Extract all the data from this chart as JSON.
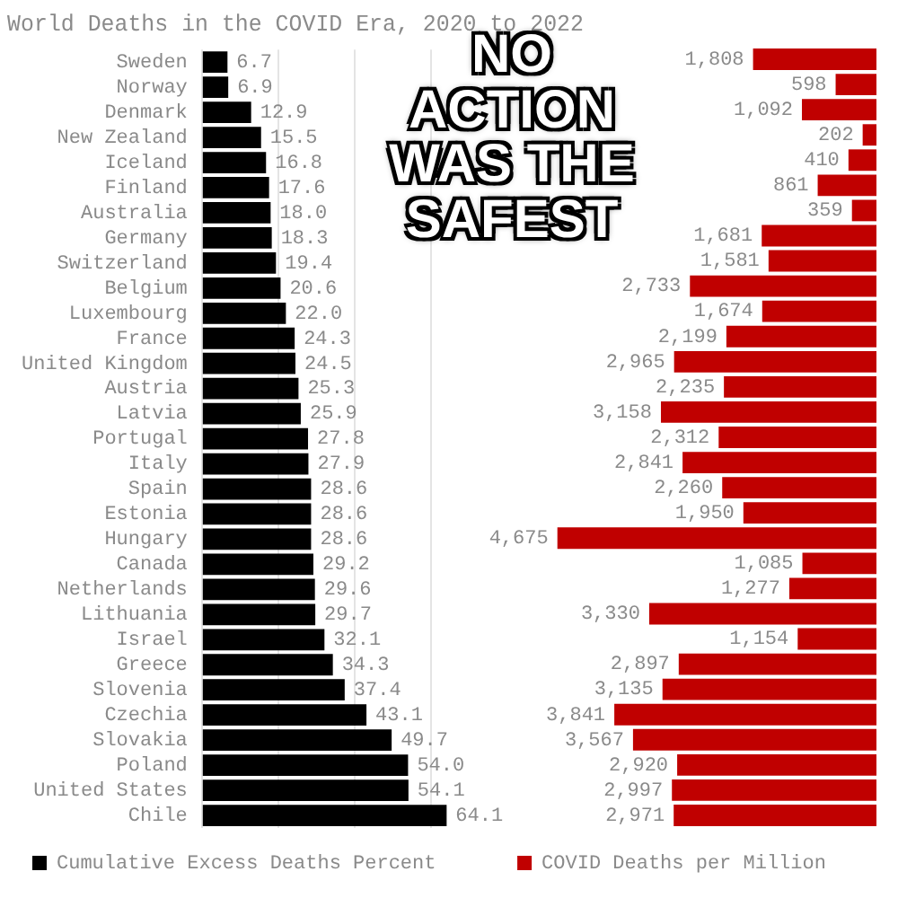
{
  "chart_data": [
    {
      "type": "bar",
      "orientation": "horizontal",
      "title": "World Deaths in the COVID Era, 2020 to 2022",
      "categories": [
        "Sweden",
        "Norway",
        "Denmark",
        "New Zealand",
        "Iceland",
        "Finland",
        "Australia",
        "Germany",
        "Switzerland",
        "Belgium",
        "Luxembourg",
        "France",
        "United Kingdom",
        "Austria",
        "Latvia",
        "Portugal",
        "Italy",
        "Spain",
        "Estonia",
        "Hungary",
        "Canada",
        "Netherlands",
        "Lithuania",
        "Israel",
        "Greece",
        "Slovenia",
        "Czechia",
        "Slovakia",
        "Poland",
        "United States",
        "Chile"
      ],
      "series": [
        {
          "name": "Cumulative Excess Deaths Percent",
          "color": "#000000",
          "values": [
            6.7,
            6.9,
            12.9,
            15.5,
            16.8,
            17.6,
            18.0,
            18.3,
            19.4,
            20.6,
            22.0,
            24.3,
            24.5,
            25.3,
            25.9,
            27.8,
            27.9,
            28.6,
            28.6,
            28.6,
            29.2,
            29.6,
            29.7,
            32.1,
            34.3,
            37.4,
            43.1,
            49.7,
            54.0,
            54.1,
            64.1
          ],
          "value_labels": [
            "6.7",
            "6.9",
            "12.9",
            "15.5",
            "16.8",
            "17.6",
            "18.0",
            "18.3",
            "19.4",
            "20.6",
            "22.0",
            "24.3",
            "24.5",
            "25.3",
            "25.9",
            "27.8",
            "27.9",
            "28.6",
            "28.6",
            "28.6",
            "29.2",
            "29.6",
            "29.7",
            "32.1",
            "34.3",
            "37.4",
            "43.1",
            "49.7",
            "54.0",
            "54.1",
            "64.1"
          ]
        }
      ],
      "xticks": [
        {
          "value": 0,
          "label": null
        },
        {
          "value": 20,
          "label": null
        },
        {
          "value": 40,
          "label": null
        },
        {
          "value": 60,
          "label": null
        }
      ],
      "grid": "x",
      "tick_labels": "y",
      "legend": "bottom left",
      "annotations": [
        "NO ACTION WAS THE SAFEST"
      ]
    },
    {
      "type": "bar",
      "orientation": "horizontal",
      "categories": [
        null,
        null,
        null,
        null,
        null,
        null,
        null,
        null,
        null,
        null,
        null,
        null,
        null,
        null,
        null,
        null,
        null,
        null,
        null,
        null,
        null,
        null,
        null,
        null,
        null,
        null,
        null,
        null,
        null,
        null,
        null
      ],
      "series": [
        {
          "name": "COVID Deaths per Million",
          "color": "#c00000",
          "values": [
            1808,
            598,
            1092,
            202,
            410,
            861,
            359,
            1681,
            1581,
            2733,
            1674,
            2199,
            2965,
            2235,
            3158,
            2312,
            2841,
            2260,
            1950,
            4675,
            1085,
            1277,
            3330,
            1154,
            2897,
            3135,
            3841,
            3567,
            2920,
            2997,
            2971
          ],
          "value_labels": [
            "1,808",
            "598",
            "1,092",
            "202",
            "410",
            "861",
            "359",
            "1,681",
            "1,581",
            "2,733",
            "1,674",
            "2,199",
            "2,965",
            "2,235",
            "3,158",
            "2,312",
            "2,841",
            "2,260",
            "1,950",
            "4,675",
            "1,085",
            "1,277",
            "3,330",
            "1,154",
            "2,897",
            "3,135",
            "3,841",
            "3,567",
            "2,920",
            "2,997",
            "2,971"
          ]
        }
      ],
      "tick_labels": false,
      "legend": "bottom"
    }
  ]
}
